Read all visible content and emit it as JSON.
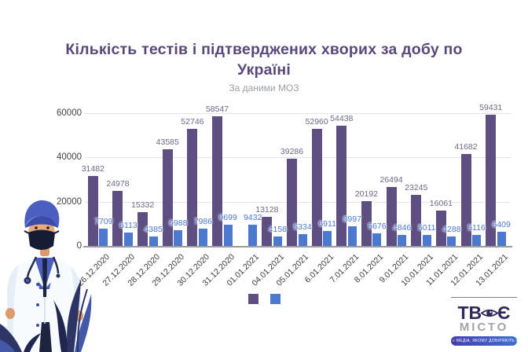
{
  "header": {
    "title": "Кількість тестів і підтверджених хворих за добу по Україні",
    "subtitle": "За даними МОЗ",
    "title_color": "#574a7b"
  },
  "chart_data": {
    "type": "bar",
    "title": "Кількість тестів і підтверджених хворих за добу по Україні",
    "subtitle": "За даними МОЗ",
    "categories": [
      "26.12.2020",
      "27.12.2020",
      "28.12.2020",
      "29.12.2020",
      "30.12.2020",
      "31.12.2020",
      "01.01.2021",
      "04.01.2021",
      "05.01.2021",
      "6.01.2021",
      "7.01.2021",
      "8.01.2021",
      "9.01.2021",
      "10.01.2021",
      "11.01.2021",
      "12.01.2021",
      "13.01.2021"
    ],
    "series": [
      {
        "name": "tests",
        "color": "#5e4e82",
        "label_color": "#6e6884",
        "values": [
          31482,
          24978,
          15332,
          43585,
          52746,
          58547,
          null,
          13128,
          39286,
          52960,
          54438,
          20192,
          26494,
          23245,
          16061,
          41682,
          59431
        ]
      },
      {
        "name": "confirmed-cases",
        "color": "#4b79d0",
        "label_color": "#4b79d0",
        "values": [
          7709,
          6113,
          4385,
          6988,
          7986,
          9699,
          9432,
          4158,
          5334,
          6911,
          8997,
          5676,
          4846,
          5011,
          4288,
          5116,
          6409
        ]
      }
    ],
    "ylim": [
      0,
      60000
    ],
    "yticks": [
      0,
      20000,
      40000,
      60000
    ],
    "grid": true,
    "legend_position": "bottom-center",
    "legend_labels": [
      "",
      ""
    ]
  },
  "logo": {
    "line1_full": "ТВОЄ",
    "line1_prefix": "ТВ",
    "line1_suffix": "Є",
    "line2": "МІСТО",
    "tagline": "« МЕДІА, ЯКОМУ ДОВІРЯЮТЬ »"
  }
}
